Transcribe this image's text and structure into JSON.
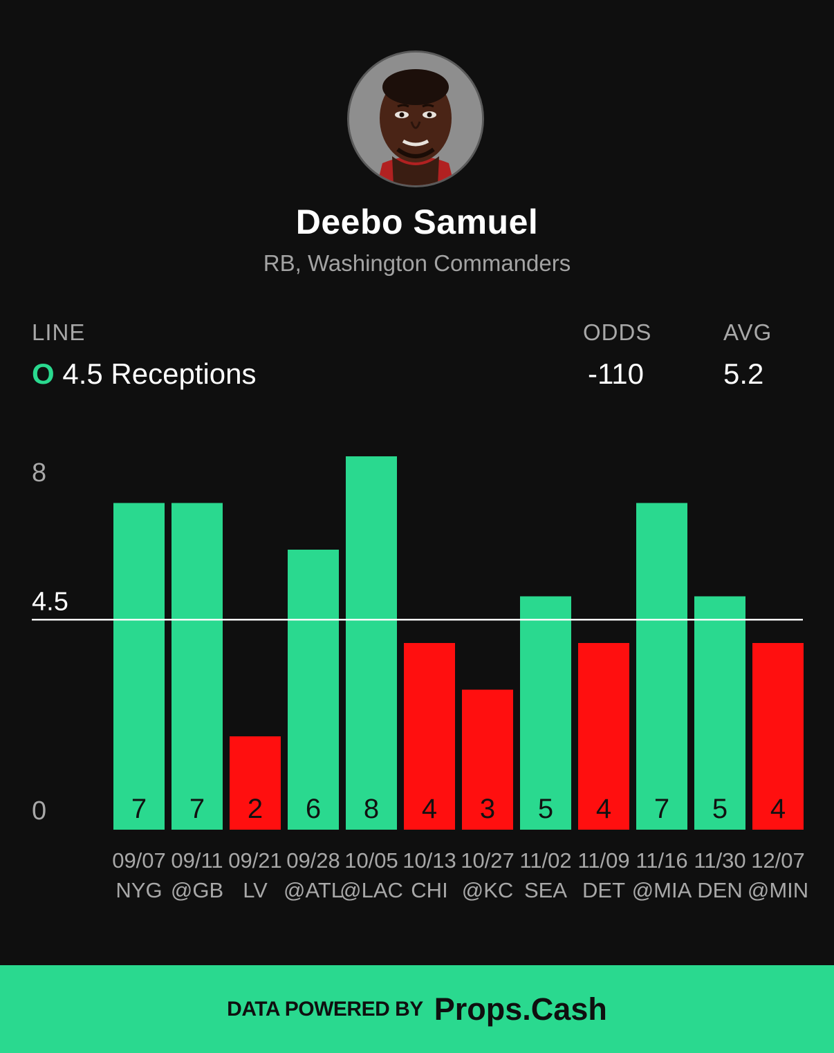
{
  "player": {
    "name": "Deebo Samuel",
    "subtitle": "RB, Washington Commanders"
  },
  "stats": {
    "line_label": "LINE",
    "line_indicator": "O",
    "line_value": "4.5 Receptions",
    "odds_label": "ODDS",
    "odds_value": "-110",
    "avg_label": "AVG",
    "avg_value": "5.2"
  },
  "colors": {
    "over": "#2ad98f",
    "under": "#ff0f0f",
    "background": "#0f0f0f",
    "line": "#ffffff"
  },
  "chart_data": {
    "type": "bar",
    "categories": [
      "09/07",
      "09/11",
      "09/21",
      "09/28",
      "10/05",
      "10/13",
      "10/27",
      "11/02",
      "11/09",
      "11/16",
      "11/30",
      "12/07"
    ],
    "opponents": [
      "NYG",
      "@GB",
      "LV",
      "@ATL",
      "@LAC",
      "CHI",
      "@KC",
      "SEA",
      "DET",
      "@MIA",
      "DEN",
      "@MIN"
    ],
    "values": [
      7,
      7,
      2,
      6,
      8,
      4,
      3,
      5,
      4,
      7,
      5,
      4
    ],
    "line": 4.5,
    "line_label": "4.5",
    "y_ticks": [
      "0",
      "8"
    ],
    "ylim": [
      0,
      8
    ],
    "grid": false
  },
  "footer": {
    "powered_by": "DATA POWERED BY",
    "brand": "Props.Cash"
  }
}
